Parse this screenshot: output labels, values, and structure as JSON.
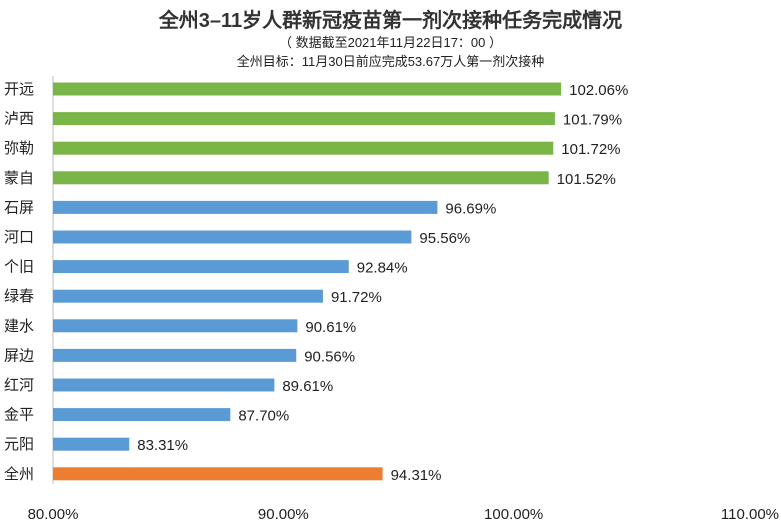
{
  "header": {
    "title": "全州3–11岁人群新冠疫苗第一剂次接种任务完成情况",
    "subtitle": "（ 数据截至2021年11月22日17：00 ）",
    "target": "全州目标：11月30日前应完成53.67万人第一剂次接种"
  },
  "chart_data": {
    "type": "bar",
    "orientation": "horizontal",
    "title": "全州3–11岁人群新冠疫苗第一剂次接种任务完成情况",
    "categories": [
      "开远",
      "泸西",
      "弥勒",
      "蒙自",
      "石屏",
      "河口",
      "个旧",
      "绿春",
      "建水",
      "屏边",
      "红河",
      "金平",
      "元阳",
      "全州"
    ],
    "values": [
      102.06,
      101.79,
      101.72,
      101.52,
      96.69,
      95.56,
      92.84,
      91.72,
      90.61,
      90.56,
      89.61,
      87.7,
      83.31,
      94.31
    ],
    "value_labels": [
      "102.06%",
      "101.79%",
      "101.72%",
      "101.52%",
      "96.69%",
      "95.56%",
      "92.84%",
      "91.72%",
      "90.61%",
      "90.56%",
      "89.61%",
      "87.70%",
      "83.31%",
      "94.31%"
    ],
    "bar_colors": [
      "#7ab547",
      "#7ab547",
      "#7ab547",
      "#7ab547",
      "#5b9bd5",
      "#5b9bd5",
      "#5b9bd5",
      "#5b9bd5",
      "#5b9bd5",
      "#5b9bd5",
      "#5b9bd5",
      "#5b9bd5",
      "#5b9bd5",
      "#ed7d31"
    ],
    "xlim": [
      80,
      110
    ],
    "xticks": [
      80,
      90,
      100,
      110
    ],
    "xtick_labels": [
      "80.00%",
      "90.00%",
      "100.00%",
      "110.00%"
    ],
    "xlabel": "",
    "ylabel": "",
    "grid": false,
    "legend": "none"
  }
}
